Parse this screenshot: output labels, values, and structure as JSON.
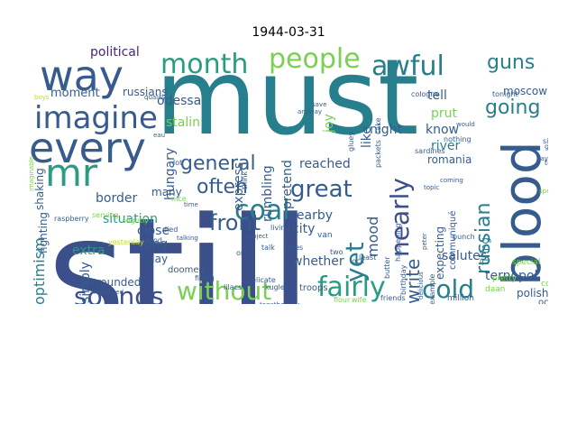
{
  "title": "1944-03-31",
  "palette": {
    "navy": "#3b4f8a",
    "indigo": "#414487",
    "blue": "#365c8d",
    "teal": "#277f8e",
    "green": "#2a9d80",
    "lime": "#7ad151",
    "yellow": "#bddf26",
    "purple": "#482677",
    "dark": "#443983"
  },
  "words": [
    {
      "text": "still",
      "color": "navy"
    },
    {
      "text": "must",
      "color": "teal"
    },
    {
      "text": "way",
      "color": "blue"
    },
    {
      "text": "every",
      "color": "blue"
    },
    {
      "text": "blood",
      "color": "blue"
    },
    {
      "text": "imagine",
      "color": "blue"
    },
    {
      "text": "mr",
      "color": "green"
    },
    {
      "text": "month",
      "color": "green"
    },
    {
      "text": "people",
      "color": "lime"
    },
    {
      "text": "awful",
      "color": "teal"
    },
    {
      "text": "guns",
      "color": "teal"
    },
    {
      "text": "coal",
      "color": "teal"
    },
    {
      "text": "without",
      "color": "lime"
    },
    {
      "text": "fairly",
      "color": "green"
    },
    {
      "text": "cold",
      "color": "teal"
    },
    {
      "text": "sounds",
      "color": "navy"
    },
    {
      "text": "nearly",
      "color": "navy"
    },
    {
      "text": "great",
      "color": "blue"
    },
    {
      "text": "yet",
      "color": "teal"
    },
    {
      "text": "front",
      "color": "blue"
    },
    {
      "text": "general",
      "color": "blue"
    },
    {
      "text": "often",
      "color": "blue"
    },
    {
      "text": "russian",
      "color": "teal"
    },
    {
      "text": "going",
      "color": "teal"
    },
    {
      "text": "write",
      "color": "blue"
    },
    {
      "text": "mood",
      "color": "blue"
    },
    {
      "text": "optimism",
      "color": "teal"
    },
    {
      "text": "political",
      "color": "purple"
    },
    {
      "text": "odessa",
      "color": "blue"
    },
    {
      "text": "moment",
      "color": "blue"
    },
    {
      "text": "russians",
      "color": "blue"
    },
    {
      "text": "stalin",
      "color": "lime"
    },
    {
      "text": "hungary",
      "color": "blue"
    },
    {
      "text": "express",
      "color": "blue"
    },
    {
      "text": "rumbling",
      "color": "blue"
    },
    {
      "text": "pretend",
      "color": "blue"
    },
    {
      "text": "joy",
      "color": "lime"
    },
    {
      "text": "tell",
      "color": "blue"
    },
    {
      "text": "moscow",
      "color": "blue"
    },
    {
      "text": "prut",
      "color": "lime"
    },
    {
      "text": "know",
      "color": "blue"
    },
    {
      "text": "like",
      "color": "blue"
    },
    {
      "text": "night",
      "color": "blue"
    },
    {
      "text": "river",
      "color": "teal"
    },
    {
      "text": "romania",
      "color": "blue"
    },
    {
      "text": "reached",
      "color": "blue"
    },
    {
      "text": "city",
      "color": "blue"
    },
    {
      "text": "nearby",
      "color": "blue"
    },
    {
      "text": "border",
      "color": "blue"
    },
    {
      "text": "many",
      "color": "blue"
    },
    {
      "text": "situation",
      "color": "green"
    },
    {
      "text": "close",
      "color": "blue"
    },
    {
      "text": "long",
      "color": "blue"
    },
    {
      "text": "day",
      "color": "blue"
    },
    {
      "text": "extra",
      "color": "green"
    },
    {
      "text": "simply",
      "color": "blue"
    },
    {
      "text": "fighting",
      "color": "blue"
    },
    {
      "text": "shaking",
      "color": "blue"
    },
    {
      "text": "surrounded",
      "color": "blue"
    },
    {
      "text": "whether",
      "color": "blue"
    },
    {
      "text": "salutes",
      "color": "blue"
    },
    {
      "text": "ternopol",
      "color": "blue"
    },
    {
      "text": "polish",
      "color": "blue"
    },
    {
      "text": "occupied",
      "color": "blue"
    },
    {
      "text": "communiqué",
      "color": "blue"
    },
    {
      "text": "expecting",
      "color": "blue"
    },
    {
      "text": "firing",
      "color": "teal"
    },
    {
      "text": "special",
      "color": "lime"
    },
    {
      "text": "pretty",
      "color": "lime"
    },
    {
      "text": "coffee",
      "color": "lime"
    },
    {
      "text": "daan",
      "color": "lime"
    },
    {
      "text": "million",
      "color": "blue"
    },
    {
      "text": "troops",
      "color": "blue"
    },
    {
      "text": "doomed",
      "color": "blue"
    },
    {
      "text": "filling",
      "color": "blue"
    },
    {
      "text": "received",
      "color": "blue"
    },
    {
      "text": "friends",
      "color": "blue"
    },
    {
      "text": "wife",
      "color": "lime"
    },
    {
      "text": "flour",
      "color": "lime"
    },
    {
      "text": "lilacs",
      "color": "blue"
    },
    {
      "text": "kugler",
      "color": "blue"
    },
    {
      "text": "together",
      "color": "blue"
    },
    {
      "text": "delicate",
      "color": "blue"
    },
    {
      "text": "van",
      "color": "blue"
    },
    {
      "text": "two",
      "color": "blue"
    },
    {
      "text": "one",
      "color": "blue"
    },
    {
      "text": "lock",
      "color": "blue"
    },
    {
      "text": "least",
      "color": "blue"
    },
    {
      "text": "birthday",
      "color": "blue"
    },
    {
      "text": "delicious",
      "color": "blue"
    },
    {
      "text": "example",
      "color": "blue"
    },
    {
      "text": "happening",
      "color": "blue"
    },
    {
      "text": "punch",
      "color": "blue"
    },
    {
      "text": "butter",
      "color": "blue"
    },
    {
      "text": "peter",
      "color": "blue"
    },
    {
      "text": "living",
      "color": "blue"
    },
    {
      "text": "talk",
      "color": "blue"
    },
    {
      "text": "hates",
      "color": "blue"
    },
    {
      "text": "subject",
      "color": "blue"
    },
    {
      "text": "yesterday",
      "color": "yellow"
    },
    {
      "text": "raspberry",
      "color": "blue"
    },
    {
      "text": "serving",
      "color": "lime"
    },
    {
      "text": "slightly",
      "color": "lime"
    },
    {
      "text": "quality",
      "color": "blue"
    },
    {
      "text": "boys",
      "color": "yellow"
    },
    {
      "text": "cologne",
      "color": "blue"
    },
    {
      "text": "tonight",
      "color": "blue"
    },
    {
      "text": "sardines",
      "color": "blue"
    },
    {
      "text": "nothing",
      "color": "blue"
    },
    {
      "text": "packets",
      "color": "blue"
    },
    {
      "text": "cake",
      "color": "blue"
    },
    {
      "text": "since",
      "color": "blue"
    },
    {
      "text": "tobacco",
      "color": "blue"
    },
    {
      "text": "german",
      "color": "blue"
    },
    {
      "text": "gluey",
      "color": "blue"
    },
    {
      "text": "say",
      "color": "blue"
    },
    {
      "text": "save",
      "color": "blue"
    },
    {
      "text": "anyway",
      "color": "blue"
    },
    {
      "text": "coming",
      "color": "blue"
    },
    {
      "text": "topic",
      "color": "blue"
    },
    {
      "text": "lot",
      "color": "blue"
    },
    {
      "text": "eau",
      "color": "blue"
    },
    {
      "text": "time",
      "color": "blue"
    },
    {
      "text": "nice",
      "color": "lime"
    },
    {
      "text": "good",
      "color": "blue"
    },
    {
      "text": "died",
      "color": "blue"
    },
    {
      "text": "tulips",
      "color": "lime"
    },
    {
      "text": "managed",
      "color": "blue"
    },
    {
      "text": "bit",
      "color": "blue"
    },
    {
      "text": "think",
      "color": "blue"
    },
    {
      "text": "would",
      "color": "blue"
    },
    {
      "text": "hold",
      "color": "blue"
    },
    {
      "text": "last",
      "color": "lime"
    },
    {
      "text": "speed",
      "color": "lime"
    },
    {
      "text": "imaginable",
      "color": "lime"
    },
    {
      "text": "talking",
      "color": "blue"
    },
    {
      "text": "food",
      "color": "lime"
    },
    {
      "text": "somehow",
      "color": "blue"
    }
  ]
}
